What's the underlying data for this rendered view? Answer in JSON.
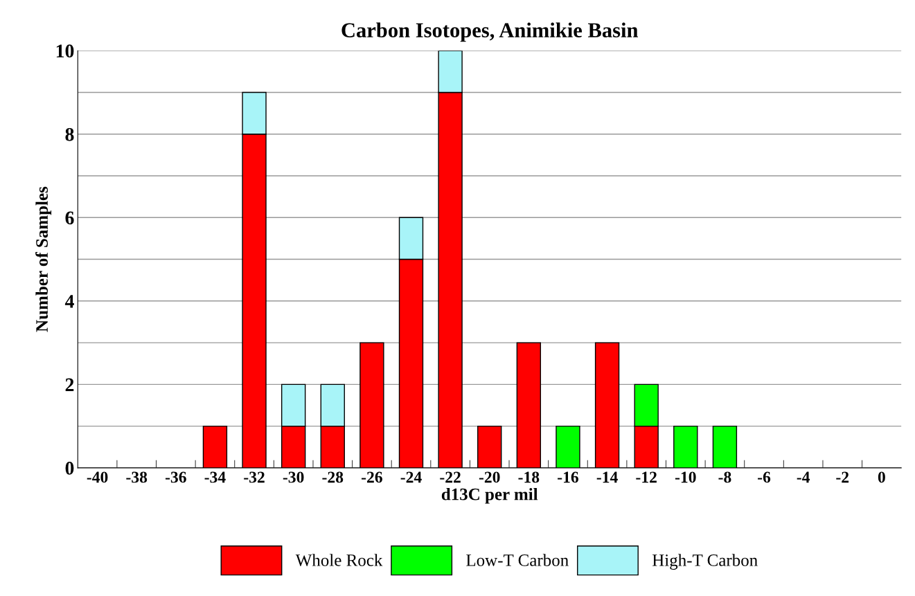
{
  "chart_data": {
    "type": "bar",
    "stacked": true,
    "title": "Carbon Isotopes, Animikie Basin",
    "xlabel": "d13C per mil",
    "ylabel": "Number of Samples",
    "categories": [
      "-40",
      "-38",
      "-36",
      "-34",
      "-32",
      "-30",
      "-28",
      "-26",
      "-24",
      "-22",
      "-20",
      "-18",
      "-16",
      "-14",
      "-12",
      "-10",
      "-8",
      "-6",
      "-4",
      "-2",
      "0"
    ],
    "series": [
      {
        "name": "Whole Rock",
        "color": "#ff0000",
        "values": [
          0,
          0,
          0,
          1,
          8,
          1,
          1,
          3,
          5,
          9,
          1,
          3,
          0,
          3,
          1,
          0,
          0,
          0,
          0,
          0,
          0
        ]
      },
      {
        "name": "Low-T Carbon",
        "color": "#00ff00",
        "values": [
          0,
          0,
          0,
          0,
          0,
          0,
          0,
          0,
          0,
          0,
          0,
          0,
          1,
          0,
          1,
          1,
          1,
          0,
          0,
          0,
          0
        ]
      },
      {
        "name": "High-T Carbon",
        "color": "#a8f4f8",
        "values": [
          0,
          0,
          0,
          0,
          1,
          1,
          1,
          0,
          1,
          1,
          0,
          0,
          0,
          0,
          0,
          0,
          0,
          0,
          0,
          0,
          0
        ]
      }
    ],
    "ylim": [
      0,
      10
    ],
    "yticks": [
      0,
      {
        "value": 1,
        "label": null
      },
      2,
      {
        "value": 3,
        "label": null
      },
      4,
      {
        "value": 5,
        "label": null
      },
      6,
      {
        "value": 7,
        "label": null
      },
      8,
      {
        "value": 9,
        "label": null
      },
      10
    ],
    "grid": "y",
    "legend": "bottom"
  }
}
